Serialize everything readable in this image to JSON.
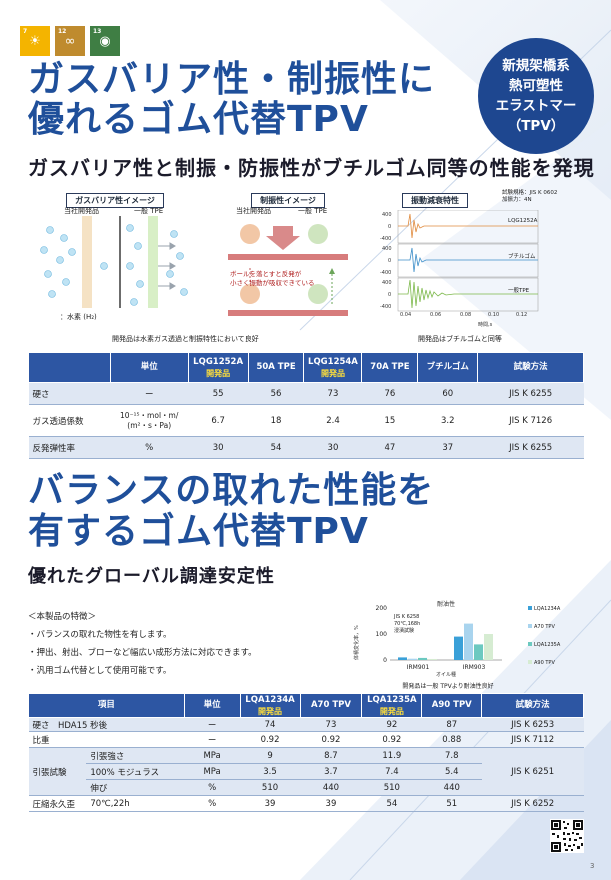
{
  "sdg": [
    {
      "num": "7",
      "color": "#f4b400",
      "icon": "sun-icon"
    },
    {
      "num": "12",
      "color": "#bf8b2e",
      "icon": "infinity-icon"
    },
    {
      "num": "13",
      "color": "#3f7e44",
      "icon": "eye-globe-icon"
    }
  ],
  "section1": {
    "title_line1": "ガスバリア性・制振性に",
    "title_line2": "優れるゴム代替TPV",
    "subtitle": "ガスバリア性と制振・防振性がブチルゴム同等の性能を発現"
  },
  "badge": {
    "line1": "新規架橋系",
    "line2": "熱可塑性",
    "line3": "エラストマー",
    "line4": "（TPV）"
  },
  "fig1": {
    "title": "ガスバリア性イメージ",
    "left_label": "当社開発品",
    "right_label": "一般 TPE",
    "legend": "：水素 (H₂)"
  },
  "fig2": {
    "title": "制振性イメージ",
    "left_label": "当社開発品",
    "right_label": "一般 TPE",
    "note_line1": "ボールを落とすと反発が",
    "note_line2": "小さく振動が吸収できている"
  },
  "fig3": {
    "title": "振動減衰特性",
    "test_std": "試験規格：JIS K 0602",
    "test_force": "加振力：4N",
    "series": [
      "LQG1252A",
      "ブチルゴム",
      "一般TPE"
    ],
    "ylabel": "加速度 m/s²",
    "yticks": [
      "400",
      "0",
      "-400"
    ],
    "xticks": [
      "0.04",
      "0.06",
      "0.08",
      "0.10",
      "0.12"
    ],
    "xlabel": "時間,s"
  },
  "captions": {
    "left": "開発品は水素ガス透過と制振特性において良好",
    "right": "開発品はブチルゴムと同等"
  },
  "table1": {
    "headers": [
      "",
      "単位",
      "LQG1252A",
      "50A TPE",
      "LQG1254A",
      "70A TPE",
      "ブチルゴム",
      "試験方法"
    ],
    "dev_label": "開発品",
    "rows": [
      {
        "item": "硬さ",
        "unit": "ー",
        "v": [
          "55",
          "56",
          "73",
          "76",
          "60"
        ],
        "method": "JIS K 6255"
      },
      {
        "item": "ガス透過係数",
        "unit_line1": "10⁻¹⁵・mol・m/",
        "unit_line2": "(m²・s・Pa)",
        "v": [
          "6.7",
          "18",
          "2.4",
          "15",
          "3.2"
        ],
        "method": "JIS K 7126"
      },
      {
        "item": "反発弾性率",
        "unit": "%",
        "v": [
          "30",
          "54",
          "30",
          "47",
          "37"
        ],
        "method": "JIS K 6255"
      }
    ]
  },
  "section2": {
    "title_line1": "バランスの取れた性能を",
    "title_line2": "有するゴム代替TPV",
    "subtitle": "優れたグローバル調達安定性"
  },
  "features": {
    "heading": "＜本製品の特徴＞",
    "items": [
      "・バランスの取れた物性を有します。",
      "・押出、射出、ブローなど幅広い成形方法に対応できます。",
      "・汎用ゴム代替として使用可能です。"
    ]
  },
  "chart_data": {
    "type": "bar",
    "title": "耐油性",
    "ylabel": "体積変化率，%",
    "ylim": [
      0,
      200
    ],
    "yticks": [
      "200",
      "100",
      "0"
    ],
    "categories": [
      "IRM901",
      "IRM903"
    ],
    "xlabel": "オイル種",
    "series": [
      {
        "name": "LQA1234A",
        "color": "#3aa0d8",
        "values": [
          10,
          90
        ]
      },
      {
        "name": "A70 TPV",
        "color": "#a9d4ee",
        "values": [
          5,
          140
        ]
      },
      {
        "name": "LQA1235A",
        "color": "#6cc9c0",
        "values": [
          8,
          60
        ]
      },
      {
        "name": "A90 TPV",
        "color": "#d6ecd2",
        "values": [
          4,
          100
        ]
      }
    ],
    "annotation_line1": "JIS K 6258",
    "annotation_line2": "70℃,168h",
    "annotation_line3": "浸漬試験",
    "caption": "開発品は一般 TPVより耐油性良好"
  },
  "table2": {
    "headers": [
      "項目",
      "単位",
      "LQA1234A",
      "A70 TPV",
      "LQA1235A",
      "A90 TPV",
      "試験方法"
    ],
    "dev_label": "開発品",
    "rows": [
      {
        "item": "硬さ　HDA15 秒後",
        "sub": "",
        "unit": "ー",
        "v": [
          "74",
          "73",
          "92",
          "87"
        ],
        "method": "JIS K 6253"
      },
      {
        "item": "比重",
        "sub": "",
        "unit": "ー",
        "v": [
          "0.92",
          "0.92",
          "0.92",
          "0.88"
        ],
        "method": "JIS K 7112"
      },
      {
        "item": "引張試験",
        "sub": "引張強さ",
        "unit": "MPa",
        "v": [
          "9",
          "8.7",
          "11.9",
          "7.8"
        ],
        "method": "JIS K 6251"
      },
      {
        "item": "",
        "sub": "100% モジュラス",
        "unit": "MPa",
        "v": [
          "3.5",
          "3.7",
          "7.4",
          "5.4"
        ],
        "method": ""
      },
      {
        "item": "",
        "sub": "伸び",
        "unit": "%",
        "v": [
          "510",
          "440",
          "510",
          "440"
        ],
        "method": ""
      },
      {
        "item": "圧縮永久歪",
        "sub": "70℃,22h",
        "unit": "%",
        "v": [
          "39",
          "39",
          "54",
          "51"
        ],
        "method": "JIS K 6252"
      }
    ]
  },
  "page_number": "3"
}
